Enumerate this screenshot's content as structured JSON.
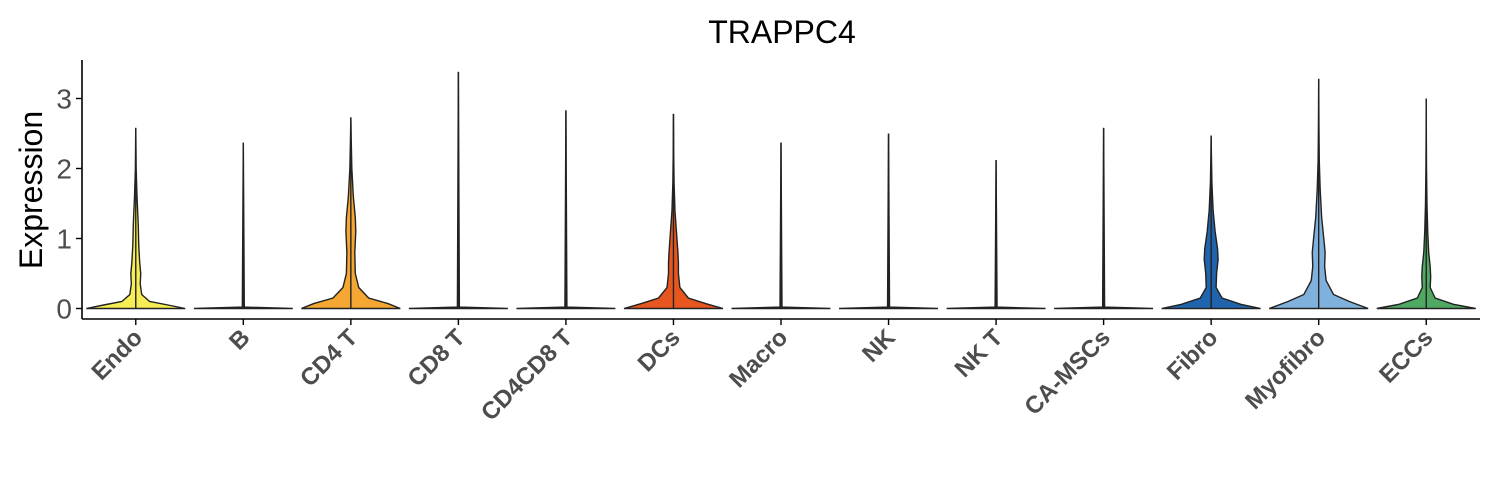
{
  "chart_data": {
    "type": "violin",
    "title": "TRAPPC4",
    "xlabel": "",
    "ylabel": "Expression",
    "ylim": [
      -0.15,
      3.55
    ],
    "yticks": [
      0,
      1,
      2,
      3
    ],
    "grid": false,
    "legend": "none",
    "categories": [
      "Endo",
      "B",
      "CD4 T",
      "CD8 T",
      "CD4CD8 T",
      "DCs",
      "Macro",
      "NK",
      "NK T",
      "CA-MSCs",
      "Fibro",
      "Myofibro",
      "ECCs"
    ],
    "series": [
      {
        "category": "Endo",
        "color": "#f7ee55",
        "max": 2.58,
        "density": [
          [
            0,
            1.0
          ],
          [
            0.05,
            0.65
          ],
          [
            0.1,
            0.28
          ],
          [
            0.2,
            0.12
          ],
          [
            0.35,
            0.09
          ],
          [
            0.5,
            0.1
          ],
          [
            0.65,
            0.08
          ],
          [
            0.9,
            0.06
          ],
          [
            1.2,
            0.05
          ],
          [
            1.6,
            0.025
          ],
          [
            2.0,
            0.008
          ],
          [
            2.58,
            0
          ]
        ]
      },
      {
        "category": "B",
        "color": "#f3e64a",
        "max": 2.37,
        "density": [
          [
            0,
            1.0
          ],
          [
            0.02,
            0.02
          ],
          [
            2.37,
            0
          ]
        ]
      },
      {
        "category": "CD4 T",
        "color": "#f5a733",
        "max": 2.73,
        "density": [
          [
            0,
            1.0
          ],
          [
            0.07,
            0.75
          ],
          [
            0.15,
            0.36
          ],
          [
            0.3,
            0.16
          ],
          [
            0.5,
            0.09
          ],
          [
            0.8,
            0.08
          ],
          [
            1.1,
            0.1
          ],
          [
            1.3,
            0.09
          ],
          [
            1.6,
            0.05
          ],
          [
            2.0,
            0.02
          ],
          [
            2.4,
            0.008
          ],
          [
            2.73,
            0
          ]
        ]
      },
      {
        "category": "CD8 T",
        "color": "#f19a30",
        "max": 3.38,
        "density": [
          [
            0,
            1.0
          ],
          [
            0.02,
            0.02
          ],
          [
            3.38,
            0
          ]
        ]
      },
      {
        "category": "CD4CD8 T",
        "color": "#ec7f2a",
        "max": 2.83,
        "density": [
          [
            0,
            1.0
          ],
          [
            0.02,
            0.02
          ],
          [
            2.83,
            0
          ]
        ]
      },
      {
        "category": "DCs",
        "color": "#e8561f",
        "max": 2.78,
        "density": [
          [
            0,
            1.0
          ],
          [
            0.07,
            0.65
          ],
          [
            0.15,
            0.3
          ],
          [
            0.3,
            0.13
          ],
          [
            0.5,
            0.1
          ],
          [
            0.65,
            0.1
          ],
          [
            0.8,
            0.09
          ],
          [
            1.1,
            0.06
          ],
          [
            1.4,
            0.03
          ],
          [
            1.8,
            0.012
          ],
          [
            2.2,
            0.005
          ],
          [
            2.78,
            0
          ]
        ]
      },
      {
        "category": "Macro",
        "color": "#2563a8",
        "max": 2.37,
        "density": [
          [
            0,
            1.0
          ],
          [
            0.02,
            0.02
          ],
          [
            2.37,
            0
          ]
        ]
      },
      {
        "category": "NK",
        "color": "#2a6cb3",
        "max": 2.5,
        "density": [
          [
            0,
            1.0
          ],
          [
            0.02,
            0.02
          ],
          [
            2.5,
            0
          ]
        ]
      },
      {
        "category": "NK T",
        "color": "#3072b8",
        "max": 2.12,
        "density": [
          [
            0,
            1.0
          ],
          [
            0.02,
            0.02
          ],
          [
            2.12,
            0
          ]
        ]
      },
      {
        "category": "CA-MSCs",
        "color": "#4b86c4",
        "max": 2.58,
        "density": [
          [
            0,
            1.0
          ],
          [
            0.02,
            0.02
          ],
          [
            2.58,
            0
          ]
        ]
      },
      {
        "category": "Fibro",
        "color": "#1f64ad",
        "max": 2.47,
        "density": [
          [
            0,
            1.0
          ],
          [
            0.06,
            0.6
          ],
          [
            0.15,
            0.22
          ],
          [
            0.3,
            0.1
          ],
          [
            0.5,
            0.11
          ],
          [
            0.7,
            0.14
          ],
          [
            0.85,
            0.13
          ],
          [
            1.1,
            0.08
          ],
          [
            1.4,
            0.04
          ],
          [
            1.8,
            0.015
          ],
          [
            2.2,
            0.005
          ],
          [
            2.47,
            0
          ]
        ]
      },
      {
        "category": "Myofibro",
        "color": "#80b1dd",
        "max": 3.28,
        "density": [
          [
            0,
            1.0
          ],
          [
            0.1,
            0.62
          ],
          [
            0.2,
            0.3
          ],
          [
            0.4,
            0.15
          ],
          [
            0.6,
            0.12
          ],
          [
            0.8,
            0.13
          ],
          [
            0.95,
            0.11
          ],
          [
            1.3,
            0.06
          ],
          [
            1.7,
            0.03
          ],
          [
            2.1,
            0.012
          ],
          [
            2.6,
            0.005
          ],
          [
            3.28,
            0
          ]
        ]
      },
      {
        "category": "ECCs",
        "color": "#4fa962",
        "max": 3.0,
        "density": [
          [
            0,
            1.0
          ],
          [
            0.06,
            0.55
          ],
          [
            0.15,
            0.18
          ],
          [
            0.3,
            0.08
          ],
          [
            0.45,
            0.09
          ],
          [
            0.6,
            0.08
          ],
          [
            0.8,
            0.05
          ],
          [
            1.1,
            0.03
          ],
          [
            1.5,
            0.015
          ],
          [
            2.0,
            0.006
          ],
          [
            2.5,
            0.002
          ],
          [
            3.0,
            0
          ]
        ]
      }
    ]
  }
}
